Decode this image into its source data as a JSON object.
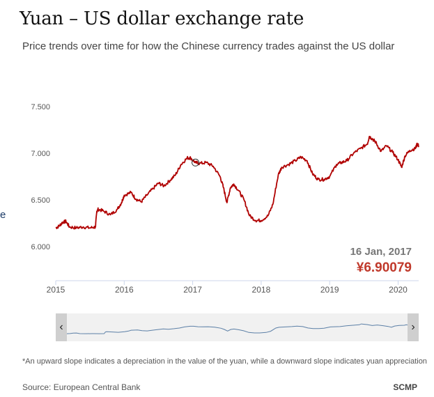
{
  "header": {
    "title": "Yuan – US dollar exchange rate",
    "subtitle": "Price trends over time for how the Chinese currency trades against the US dollar"
  },
  "edge_text": "e",
  "footnote": "*An upward slope indicates a depreciation in the value of the yuan, while a downward slope indicates yuan appreciation",
  "source": "Source: European Central Bank",
  "brand": "SCMP",
  "colors": {
    "line": "#b00000",
    "annotation_value": "#c0392b",
    "annotation_date": "#777777",
    "navigator_line": "#5b7fa6"
  },
  "icons": {
    "nav_left": "chevron-left-icon",
    "nav_right": "chevron-right-icon"
  },
  "chart_data": {
    "type": "line",
    "xlabel": "",
    "ylabel": "",
    "xlim": [
      2015.0,
      2020.3
    ],
    "ylim": [
      6.0,
      7.5
    ],
    "y_ticks": [
      "6.000",
      "6.500",
      "7.000",
      "7.500"
    ],
    "x_ticks": [
      "2015",
      "2016",
      "2017",
      "2018",
      "2019",
      "2020"
    ],
    "grid": false,
    "series": [
      {
        "x": [
          2015.0,
          2015.05,
          2015.1,
          2015.15,
          2015.2,
          2015.3,
          2015.4,
          2015.5,
          2015.58,
          2015.6,
          2015.62,
          2015.7,
          2015.8,
          2015.9,
          2015.96,
          2016.0,
          2016.1,
          2016.17,
          2016.25,
          2016.33,
          2016.42,
          2016.5,
          2016.58,
          2016.67,
          2016.75,
          2016.83,
          2016.92,
          2016.97,
          2017.04,
          2017.1,
          2017.2,
          2017.3,
          2017.4,
          2017.45,
          2017.5,
          2017.55,
          2017.6,
          2017.67,
          2017.75,
          2017.83,
          2017.92,
          2018.0,
          2018.1,
          2018.17,
          2018.25,
          2018.3,
          2018.4,
          2018.5,
          2018.58,
          2018.67,
          2018.75,
          2018.83,
          2018.92,
          2019.0,
          2019.1,
          2019.17,
          2019.25,
          2019.35,
          2019.45,
          2019.55,
          2019.58,
          2019.63,
          2019.67,
          2019.75,
          2019.83,
          2019.92,
          2020.0,
          2020.05,
          2020.1,
          2020.17,
          2020.25,
          2020.28,
          2020.3
        ],
        "y": [
          6.2,
          6.22,
          6.26,
          6.27,
          6.21,
          6.2,
          6.21,
          6.2,
          6.21,
          6.38,
          6.4,
          6.38,
          6.34,
          6.4,
          6.47,
          6.55,
          6.58,
          6.51,
          6.48,
          6.55,
          6.62,
          6.68,
          6.65,
          6.71,
          6.77,
          6.88,
          6.95,
          6.95,
          6.9,
          6.89,
          6.9,
          6.86,
          6.75,
          6.63,
          6.47,
          6.63,
          6.67,
          6.6,
          6.5,
          6.33,
          6.28,
          6.28,
          6.33,
          6.45,
          6.77,
          6.85,
          6.88,
          6.92,
          6.96,
          6.92,
          6.78,
          6.72,
          6.72,
          6.75,
          6.88,
          6.9,
          6.92,
          7.0,
          7.05,
          7.1,
          7.18,
          7.15,
          7.12,
          7.02,
          7.08,
          7.01,
          6.93,
          6.85,
          6.97,
          7.03,
          7.05,
          7.1,
          7.08
        ]
      }
    ],
    "annotation": {
      "date": "16 Jan, 2017",
      "value": "¥6.90079",
      "x": 2017.04,
      "y": 6.9
    }
  }
}
